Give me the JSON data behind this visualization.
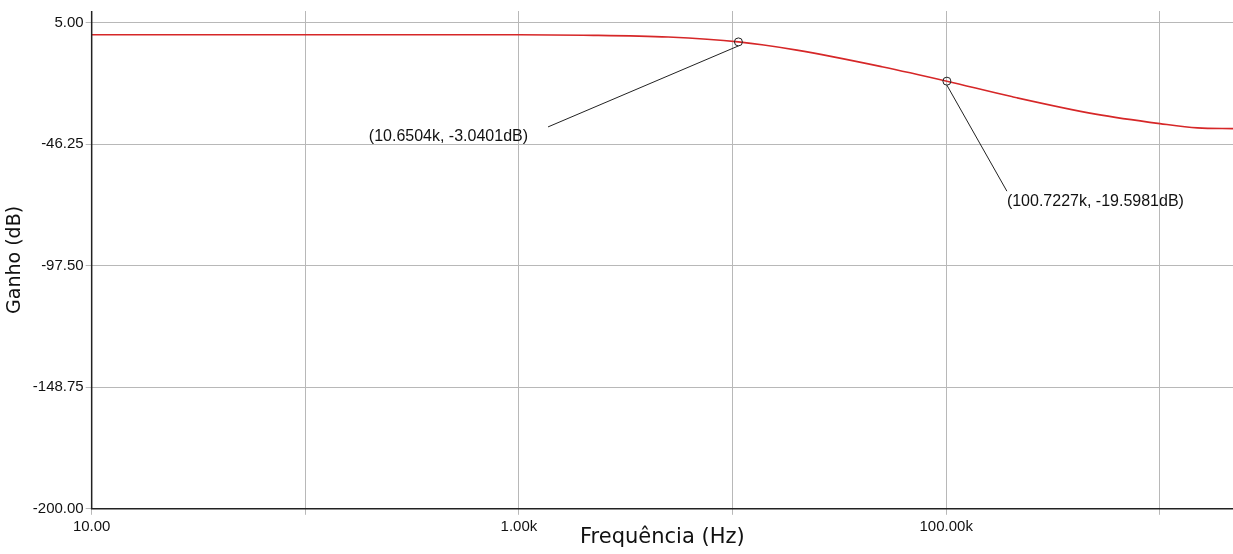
{
  "chart_data": {
    "type": "line",
    "xlabel": "Frequência (Hz)",
    "ylabel": "Ganho (dB)",
    "log": "x",
    "grid": true,
    "marker": "none",
    "line_style": "solid",
    "x": [
      10,
      30,
      100,
      300,
      1000,
      2000,
      5000,
      10650.4,
      20000,
      50000,
      100722.7,
      200000,
      500000,
      1000000,
      1500000,
      2200000
    ],
    "series": [
      {
        "color": "#d62728",
        "values": [
          0,
          0,
          0,
          0,
          0,
          -0.2,
          -1,
          -3.0401,
          -6.5,
          -13.5,
          -19.5981,
          -26,
          -33.5,
          -37.5,
          -39.3,
          -39.6
        ]
      }
    ],
    "xlim": [
      10,
      2200000
    ],
    "xticks": [
      {
        "value": 10,
        "label": "10.00"
      },
      {
        "value": 100,
        "label": null
      },
      {
        "value": 1000,
        "label": "1.00k"
      },
      {
        "value": 10000,
        "label": null
      },
      {
        "value": 100000,
        "label": "100.00k"
      },
      {
        "value": 1000000,
        "label": null
      }
    ],
    "ylim": [
      -200,
      10
    ],
    "yticks": [
      {
        "value": 5,
        "label": "5.00"
      },
      {
        "value": -46.25,
        "label": "-46.25"
      },
      {
        "value": -97.5,
        "label": "-97.50"
      },
      {
        "value": -148.75,
        "label": "-148.75"
      },
      {
        "value": -200,
        "label": "-200.00"
      }
    ],
    "annotations": [
      {
        "text": "(10.6504k, -3.0401dB)",
        "x": 10650.4,
        "y": -3.0401
      },
      {
        "text": "(100.7227k, -19.5981dB)",
        "x": 100722.7,
        "y": -19.5981
      }
    ]
  }
}
